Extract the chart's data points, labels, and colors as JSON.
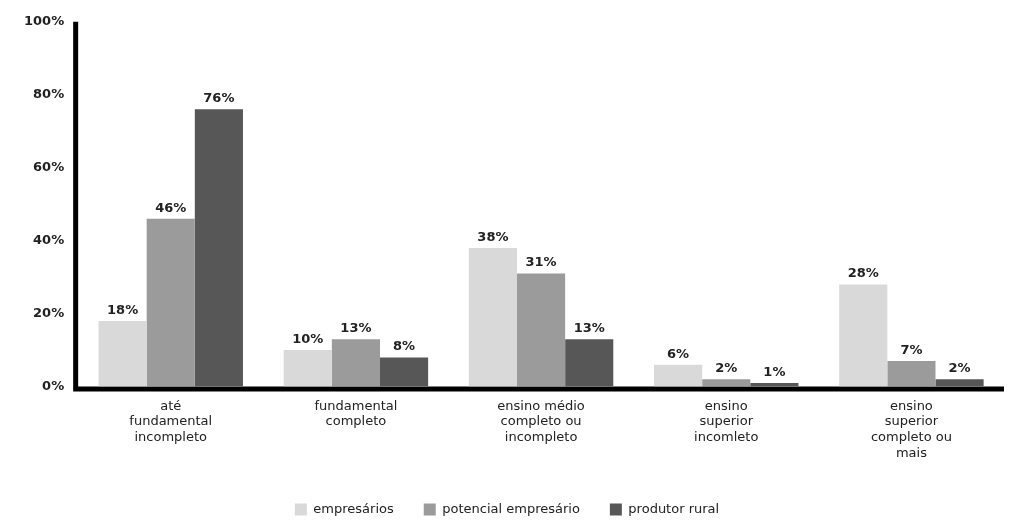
{
  "chart_data": {
    "type": "bar",
    "categories": [
      "até fundamental incompleto",
      "fundamental completo",
      "ensino médio completo ou incompleto",
      "ensino superior incomleto",
      "ensino superior completo ou mais"
    ],
    "series": [
      {
        "name": "empresários",
        "color": "#d9d9d9",
        "values": [
          18,
          10,
          38,
          6,
          28
        ],
        "value_labels": [
          "18%",
          "10%",
          "38%",
          "6%",
          "28%"
        ]
      },
      {
        "name": "potencial empresário",
        "color": "#9b9b9b",
        "values": [
          46,
          13,
          31,
          2,
          7
        ],
        "value_labels": [
          "46%",
          "13%",
          "31%",
          "2%",
          "7%"
        ]
      },
      {
        "name": "produtor rural",
        "color": "#575757",
        "values": [
          76,
          8,
          13,
          1,
          2
        ],
        "value_labels": [
          "76%",
          "8%",
          "13%",
          "1%",
          "2%"
        ]
      }
    ],
    "ylim": [
      0,
      100
    ],
    "yticks": [
      {
        "value": 0,
        "label": "0%"
      },
      {
        "value": 20,
        "label": "20%"
      },
      {
        "value": 40,
        "label": "40%"
      },
      {
        "value": 60,
        "label": "60%"
      },
      {
        "value": 80,
        "label": "80%"
      },
      {
        "value": 100,
        "label": "100%"
      }
    ],
    "grid": false,
    "legend": "bottom"
  }
}
